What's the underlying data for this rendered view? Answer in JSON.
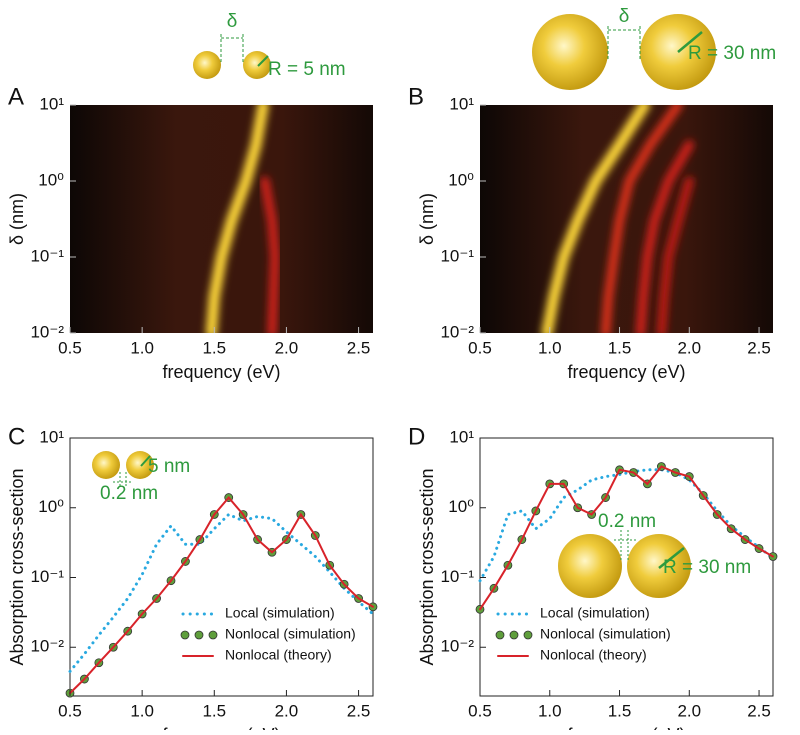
{
  "chart_data": [
    {
      "type": "heatmap",
      "panel_label": "A",
      "x_label": "frequency (eV)",
      "y_label": "δ (nm)",
      "annotations": [
        "δ",
        "R = 5 nm"
      ],
      "xlim": [
        0.5,
        2.6
      ],
      "xticks": [
        0.5,
        {
          "value": 1,
          "label": "1.0"
        },
        1.5,
        {
          "value": 2,
          "label": "2.0"
        },
        2.5
      ],
      "ylim": [
        0.01,
        10
      ],
      "log_y": true,
      "yticks": [
        {
          "value": 10,
          "label": "10¹"
        },
        {
          "value": 1,
          "label": "10⁰"
        },
        {
          "value": 0.1,
          "label": "10⁻¹"
        },
        {
          "value": 0.01,
          "label": "10⁻²"
        }
      ],
      "y": [
        0.01,
        0.03,
        0.1,
        0.3,
        1,
        3,
        10
      ],
      "series": [
        {
          "color": "#ffd93a",
          "values": [
            1.48,
            1.5,
            1.55,
            1.62,
            1.72,
            1.79,
            1.84
          ]
        },
        {
          "color": "#d4201a",
          "values": [
            1.9,
            1.91,
            1.92,
            1.9,
            1.85,
            null,
            null
          ]
        }
      ]
    },
    {
      "type": "heatmap",
      "panel_label": "B",
      "x_label": "frequency (eV)",
      "y_label": "δ (nm)",
      "annotations": [
        "δ",
        "R = 30 nm"
      ],
      "xlim": [
        0.5,
        2.6
      ],
      "xticks": [
        0.5,
        {
          "value": 1,
          "label": "1.0"
        },
        1.5,
        {
          "value": 2,
          "label": "2.0"
        },
        2.5
      ],
      "ylim": [
        0.01,
        10
      ],
      "log_y": true,
      "yticks": [
        {
          "value": 10,
          "label": "10¹"
        },
        {
          "value": 1,
          "label": "10⁰"
        },
        {
          "value": 0.1,
          "label": "10⁻¹"
        },
        {
          "value": 0.01,
          "label": "10⁻²"
        }
      ],
      "y": [
        0.01,
        0.03,
        0.1,
        0.3,
        1,
        3,
        10
      ],
      "series": [
        {
          "color": "#ffd93a",
          "values": [
            0.98,
            1.03,
            1.1,
            1.2,
            1.33,
            1.5,
            1.68
          ]
        },
        {
          "color": "#e0301c",
          "values": [
            1.4,
            1.42,
            1.46,
            1.5,
            1.57,
            1.72,
            1.92
          ]
        },
        {
          "color": "#d4201a",
          "values": [
            1.65,
            1.67,
            1.7,
            1.75,
            1.85,
            2.0,
            null
          ]
        },
        {
          "color": "#c01a16",
          "values": [
            1.8,
            1.82,
            1.85,
            1.92,
            2.0,
            null,
            null
          ]
        }
      ]
    },
    {
      "type": "line",
      "panel_label": "C",
      "x_label": "frequency (eV)",
      "y_label": "Absorption cross-section",
      "annotations": [
        "5 nm",
        "0.2 nm"
      ],
      "xlim": [
        0.5,
        2.6
      ],
      "xticks": [
        0.5,
        {
          "value": 1,
          "label": "1.0"
        },
        1.5,
        {
          "value": 2,
          "label": "2.0"
        },
        2.5
      ],
      "ylim": [
        0.002,
        10
      ],
      "log_y": true,
      "yticks": [
        {
          "value": 10,
          "label": "10¹"
        },
        {
          "value": 1,
          "label": "10⁰"
        },
        {
          "value": 0.1,
          "label": "10⁻¹"
        },
        {
          "value": 0.01,
          "label": "10⁻²"
        }
      ],
      "x": [
        0.5,
        0.6,
        0.7,
        0.8,
        0.9,
        1.0,
        1.1,
        1.2,
        1.3,
        1.4,
        1.5,
        1.6,
        1.7,
        1.8,
        1.9,
        2.0,
        2.1,
        2.2,
        2.3,
        2.4,
        2.5,
        2.6
      ],
      "legend": "lower right",
      "series": [
        {
          "name": "Local (simulation)",
          "style": "dots",
          "color": "#29a9e0",
          "values": [
            0.0045,
            0.008,
            0.015,
            0.027,
            0.05,
            0.11,
            0.3,
            0.55,
            0.3,
            0.3,
            0.5,
            0.8,
            0.65,
            0.75,
            0.7,
            0.45,
            0.3,
            0.2,
            0.12,
            0.07,
            0.045,
            0.03
          ]
        },
        {
          "name": "Nonlocal (simulation)",
          "style": "markers",
          "color": "#5f9e3c",
          "values": [
            0.0022,
            0.0035,
            0.006,
            0.01,
            0.017,
            0.03,
            0.05,
            0.09,
            0.17,
            0.35,
            0.8,
            1.4,
            0.8,
            0.35,
            0.23,
            0.35,
            0.8,
            0.4,
            0.15,
            0.08,
            0.05,
            0.038
          ]
        },
        {
          "name": "Nonlocal (theory)",
          "style": "line",
          "color": "#d8232a",
          "values": [
            0.0022,
            0.0035,
            0.006,
            0.01,
            0.017,
            0.03,
            0.05,
            0.09,
            0.17,
            0.35,
            0.8,
            1.4,
            0.8,
            0.35,
            0.23,
            0.35,
            0.8,
            0.4,
            0.15,
            0.08,
            0.05,
            0.038
          ]
        }
      ]
    },
    {
      "type": "line",
      "panel_label": "D",
      "x_label": "frequency (eV)",
      "y_label": "Absorption cross-section",
      "annotations": [
        "0.2 nm",
        "R = 30 nm"
      ],
      "xlim": [
        0.5,
        2.6
      ],
      "xticks": [
        0.5,
        {
          "value": 1,
          "label": "1.0"
        },
        1.5,
        {
          "value": 2,
          "label": "2.0"
        },
        2.5
      ],
      "ylim": [
        0.002,
        10
      ],
      "log_y": true,
      "yticks": [
        {
          "value": 10,
          "label": "10¹"
        },
        {
          "value": 1,
          "label": "10⁰"
        },
        {
          "value": 0.1,
          "label": "10⁻¹"
        },
        {
          "value": 0.01,
          "label": "10⁻²"
        }
      ],
      "x": [
        0.5,
        0.6,
        0.7,
        0.8,
        0.9,
        1.0,
        1.1,
        1.2,
        1.3,
        1.4,
        1.5,
        1.6,
        1.7,
        1.8,
        1.9,
        2.0,
        2.1,
        2.2,
        2.3,
        2.4,
        2.5,
        2.6
      ],
      "legend": "lower left",
      "series": [
        {
          "name": "Local (simulation)",
          "style": "dots",
          "color": "#29a9e0",
          "values": [
            0.09,
            0.2,
            0.8,
            0.9,
            0.5,
            0.7,
            1.4,
            1.8,
            2.5,
            2.8,
            3,
            3.3,
            3.5,
            3.5,
            3.2,
            2.5,
            1.6,
            0.9,
            0.55,
            0.38,
            0.27,
            0.19
          ]
        },
        {
          "name": "Nonlocal (simulation)",
          "style": "markers",
          "color": "#5f9e3c",
          "values": [
            0.035,
            0.07,
            0.15,
            0.35,
            0.9,
            2.2,
            2.2,
            1.0,
            0.8,
            1.4,
            3.5,
            3.2,
            2.2,
            3.9,
            3.2,
            2.8,
            1.5,
            0.8,
            0.5,
            0.35,
            0.26,
            0.2
          ]
        },
        {
          "name": "Nonlocal (theory)",
          "style": "line",
          "color": "#d8232a",
          "values": [
            0.035,
            0.07,
            0.15,
            0.35,
            0.9,
            2.2,
            2.2,
            1.0,
            0.8,
            1.4,
            3.5,
            3.2,
            2.2,
            3.9,
            3.2,
            2.8,
            1.5,
            0.8,
            0.5,
            0.35,
            0.26,
            0.2
          ]
        }
      ]
    }
  ]
}
